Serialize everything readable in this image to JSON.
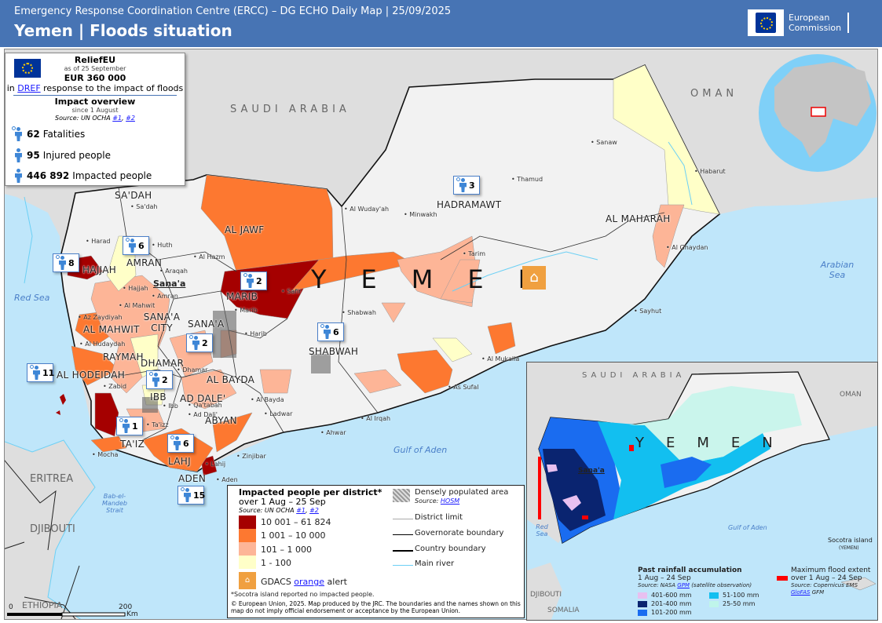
{
  "header": {
    "subtitle": "Emergency Response Coordination Centre (ERCC) – DG ECHO Daily Map | 25/09/2025",
    "title": "Yemen | Floods situation",
    "logo_line1": "European",
    "logo_line2": "Commission"
  },
  "info": {
    "relief_title": "ReliefEU",
    "as_of": "as of 25 September",
    "amount": "EUR 360 000",
    "pre": "in",
    "dref": "DREF",
    "post": "response to the impact of floods",
    "impact_title": "Impact overview",
    "since": "since 1 August",
    "source": "Source: UN OCHA",
    "link1": "#1",
    "link2": "#2",
    "stats": [
      {
        "value": "62",
        "label": "Fatalities",
        "icon": "fatalities-icon"
      },
      {
        "value": "95",
        "label": "Injured people",
        "icon": "injured-icon"
      },
      {
        "value": "446 892",
        "label": "Impacted people",
        "icon": "impacted-people-icon"
      }
    ]
  },
  "map": {
    "countries": [
      "SAUDI ARABIA",
      "OMAN",
      "ERITREA",
      "DJIBOUTI",
      "ETHIOPIA",
      "YEMEN"
    ],
    "seas": [
      "Red Sea",
      "Gulf of Aden",
      "Arabian Sea",
      "Bab-el-Mandeb Strait"
    ],
    "governorates": [
      "SA'DAH",
      "HAJJAH",
      "AMRAN",
      "AL JAWF",
      "MARIB",
      "SANA'A CITY",
      "SANA'A",
      "AL MAHWIT",
      "RAYMAH",
      "DHAMAR",
      "AL HODEIDAH",
      "IBB",
      "AL BAYDA",
      "AD DALE'",
      "TA'IZ",
      "LAHJ",
      "ADEN",
      "ABYAN",
      "SHABWAH",
      "HADRAMAWT",
      "AL MAHARAH"
    ],
    "capital": "Sana'a",
    "towns": [
      "Sa'dah",
      "Harad",
      "Huth",
      "Al Hazm",
      "Hajjah",
      "Amran",
      "Araqah",
      "Al Mahwit",
      "Az Zaydiyah",
      "Al Hudaydah",
      "Dhamar",
      "Zabid",
      "Ibb",
      "Qa'tabah",
      "Ad Dali'",
      "Ta'izz",
      "Mocha",
      "Lahij",
      "Aden",
      "Marib",
      "Safir",
      "Harib",
      "Al Bayda",
      "Ladwar",
      "Zinjibar",
      "Ahwar",
      "Al Irqah",
      "Shabwah",
      "Al Wuday'ah",
      "Minwakh",
      "Thamud",
      "Sanaw",
      "Habarut",
      "Tarim",
      "Al Mukalla",
      "As Sufal",
      "Sayhut",
      "Al Ghaydan"
    ],
    "fatality_markers": [
      {
        "governorate": "HAJJAH",
        "count": "8"
      },
      {
        "governorate": "AMRAN",
        "count": "6"
      },
      {
        "governorate": "MARIB",
        "count": "2"
      },
      {
        "governorate": "SANA'A",
        "count": "2"
      },
      {
        "governorate": "HADRAMAWT",
        "count": "3"
      },
      {
        "governorate": "SHABWAH",
        "count": "6"
      },
      {
        "governorate": "AL HODEIDAH",
        "count": "11"
      },
      {
        "governorate": "IBB",
        "count": "2"
      },
      {
        "governorate": "TA'IZ",
        "count": "1"
      },
      {
        "governorate": "LAHJ",
        "count": "6"
      },
      {
        "governorate": "ADEN",
        "count": "15"
      }
    ],
    "scale": {
      "start": "0",
      "end": "200",
      "unit": "Km"
    },
    "colors": {
      "class4": "#a50000",
      "class3": "#fd7830",
      "class2": "#fdb597",
      "class1": "#ffffc8",
      "gdacs": "#f0a040",
      "sea": "#bfe6fa",
      "land": "#dedede",
      "yemen_land": "#f2f2f2"
    }
  },
  "legend": {
    "title": "Impacted people per district",
    "asterisk": "*",
    "period": "over 1 Aug – 25 Sep",
    "source": "Source: UN OCHA",
    "link1": "#1",
    "link2": "#2",
    "classes": [
      "10 001 – 61 824",
      "1 001 – 10 000",
      "101 – 1 000",
      "1 - 100"
    ],
    "gdacs_pre": "GDACS",
    "gdacs_link": "orange",
    "gdacs_post": "alert",
    "dense": "Densely populated area",
    "dense_source": "Source:",
    "dense_link": "HOSM",
    "lines": [
      "District limit",
      "Governorate boundary",
      "Country boundary",
      "Main river"
    ],
    "note": "Socotra island reported no impacted people.",
    "copyright": "© European Union, 2025. Map produced by the JRC. The boundaries and the names shown on this map do not imply official endorsement or acceptance by the European Union."
  },
  "inset": {
    "countries": [
      "SAUDI ARABIA",
      "OMAN",
      "YEMEN",
      "DJIBOUTI",
      "SOMALIA"
    ],
    "capital": "Sana'a",
    "seas": [
      "Red Sea",
      "Gulf of Aden"
    ],
    "socotra": "Socotra island",
    "socotra_sub": "(YEMEN)",
    "rain_title": "Past rainfall accumulation",
    "rain_period": "1 Aug – 24 Sep",
    "rain_source_pre": "Source: NASA",
    "rain_link": "GPM",
    "rain_source_post": "(satellite observation)",
    "rain_classes": [
      {
        "label": "401-600 mm",
        "color": "#e8c0f0"
      },
      {
        "label": "201-400 mm",
        "color": "#0a2470"
      },
      {
        "label": "101-200 mm",
        "color": "#1a6cf0"
      },
      {
        "label": "51-100 mm",
        "color": "#12bff0"
      },
      {
        "label": "25-50 mm",
        "color": "#bff5ea"
      }
    ],
    "flood_title": "Maximum flood extent",
    "flood_period": "over 1 Aug – 24 Sep",
    "flood_source": "Source: Copernicus EMS",
    "flood_link": "GloFAS",
    "flood_post": "GFM",
    "flood_color": "#ff0000"
  }
}
